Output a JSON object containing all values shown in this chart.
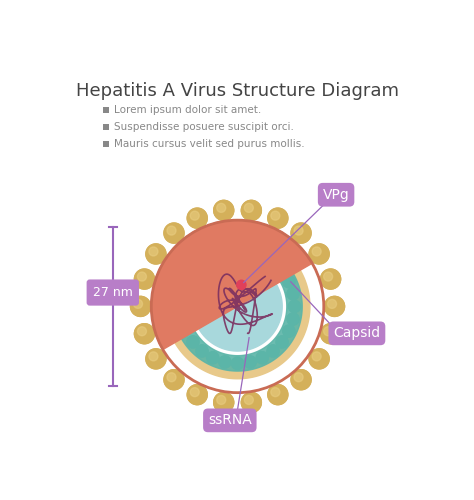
{
  "title": "Hepatitis A Virus Structure Diagram",
  "legend_items": [
    "Lorem ipsum dolor sit amet.",
    "Suspendisse posuere suscipit orci.",
    "Mauris cursus velit sed purus mollis."
  ],
  "legend_color": "#888888",
  "title_color": "#444444",
  "bg_color": "#ffffff",
  "outer_color": "#E07A62",
  "outer_dark": "#C96B54",
  "beige_color": "#E8C98A",
  "capsid_bead_color": "#5BB5A8",
  "capsid_inner_color": "#A8D8DC",
  "genome_color": "#7B3060",
  "vpg_dot_color": "#E0405A",
  "spike_color": "#D4B05A",
  "spike_highlight": "#E8CC80",
  "label_bg": "#B87EC8",
  "measure_color": "#9966BB",
  "measure_label": "27 nm",
  "label_vpg": "VPg",
  "label_capsid": "Capsid",
  "label_ssrna": "ssRNA"
}
